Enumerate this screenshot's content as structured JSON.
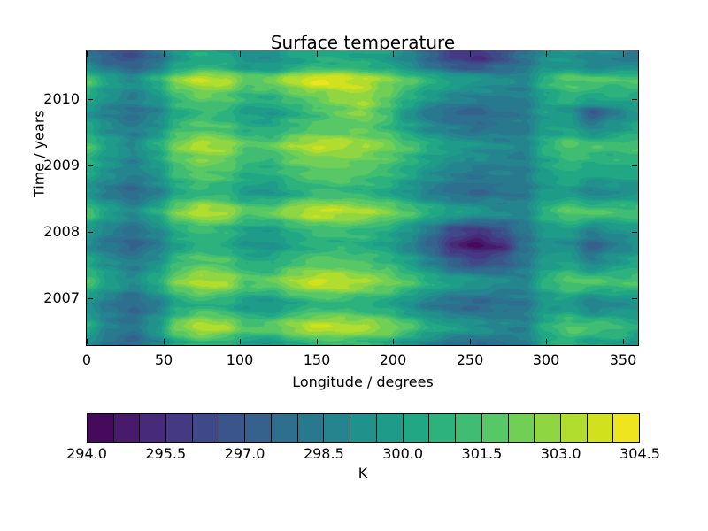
{
  "title": "Surface temperature",
  "x_axis": {
    "label": "Longitude / degrees",
    "range": [
      0,
      360
    ],
    "ticks": [
      {
        "value": 0,
        "label": "0"
      },
      {
        "value": 50,
        "label": "50"
      },
      {
        "value": 100,
        "label": "100"
      },
      {
        "value": 150,
        "label": "150"
      },
      {
        "value": 200,
        "label": "200"
      },
      {
        "value": 250,
        "label": "250"
      },
      {
        "value": 300,
        "label": "300"
      },
      {
        "value": 350,
        "label": "350"
      }
    ]
  },
  "y_axis": {
    "label": "Time / years",
    "range": [
      2006.29,
      2010.735
    ],
    "ticks": [
      {
        "value": 2007,
        "label": "2007"
      },
      {
        "value": 2008,
        "label": "2008"
      },
      {
        "value": 2009,
        "label": "2009"
      },
      {
        "value": 2010,
        "label": "2010"
      }
    ]
  },
  "colorbar": {
    "unit": "K",
    "level_min": 294.0,
    "level_step": 0.5,
    "n_cells": 21,
    "cell_colors": [
      "#450a5c",
      "#471a6c",
      "#472a79",
      "#443982",
      "#3f4888",
      "#3a558b",
      "#34628d",
      "#2e6e8e",
      "#29798e",
      "#25858e",
      "#21918c",
      "#1e9b89",
      "#22a785",
      "#2db27d",
      "#40bd72",
      "#58c765",
      "#72cf56",
      "#90d643",
      "#b0dd2e",
      "#d1e11e",
      "#efe51f"
    ],
    "ticks": [
      {
        "value": 294.0,
        "label": "294.0"
      },
      {
        "value": 295.5,
        "label": "295.5"
      },
      {
        "value": 297.0,
        "label": "297.0"
      },
      {
        "value": 298.5,
        "label": "298.5"
      },
      {
        "value": 300.0,
        "label": "300.0"
      },
      {
        "value": 301.5,
        "label": "301.5"
      },
      {
        "value": 303.0,
        "label": "303.0"
      },
      {
        "value": 304.5,
        "label": "304.5"
      }
    ]
  },
  "chart_data": {
    "type": "heatmap",
    "title": "Surface temperature",
    "xlabel": "Longitude / degrees",
    "ylabel": "Time / years",
    "units": "K",
    "contour_levels": {
      "min": 294.0,
      "max": 304.5,
      "step": 0.5
    },
    "longitude": [
      0,
      15,
      30,
      45,
      60,
      75,
      90,
      105,
      120,
      135,
      150,
      165,
      180,
      195,
      210,
      225,
      240,
      255,
      270,
      285,
      300,
      315,
      330,
      345,
      360
    ],
    "time": [
      2006.3,
      2006.55,
      2006.9,
      2007.25,
      2007.55,
      2007.8,
      2008.0,
      2008.3,
      2008.6,
      2008.9,
      2009.1,
      2009.3,
      2009.55,
      2009.8,
      2010.0,
      2010.3,
      2010.5,
      2010.62,
      2010.74
    ],
    "values": [
      [
        299.0,
        297.8,
        297.3,
        298.4,
        300.3,
        300.9,
        300.6,
        299.7,
        299.5,
        300.3,
        300.9,
        301.0,
        300.8,
        300.4,
        299.5,
        298.5,
        297.8,
        297.5,
        298.0,
        298.2,
        300.2,
        300.6,
        299.8,
        300.0,
        299.4
      ],
      [
        300.4,
        298.6,
        298.0,
        299.6,
        302.3,
        303.4,
        303.0,
        301.6,
        301.8,
        302.8,
        303.5,
        303.4,
        303.2,
        302.6,
        301.6,
        300.4,
        299.8,
        299.4,
        298.8,
        298.6,
        300.6,
        301.6,
        301.4,
        301.2,
        300.4
      ],
      [
        299.2,
        298.2,
        297.4,
        298.3,
        300.2,
        300.8,
        300.5,
        299.6,
        299.4,
        300.2,
        300.8,
        300.9,
        300.6,
        300.2,
        299.3,
        298.3,
        297.7,
        297.4,
        297.9,
        298.1,
        299.5,
        299.6,
        298.5,
        299.0,
        299.2
      ],
      [
        301.4,
        299.9,
        299.0,
        300.4,
        302.4,
        303.3,
        303.1,
        301.7,
        301.9,
        303.0,
        303.6,
        303.4,
        303.0,
        302.4,
        301.5,
        300.5,
        299.9,
        299.5,
        298.9,
        298.7,
        300.7,
        301.7,
        301.5,
        301.3,
        301.4
      ],
      [
        300.2,
        299.1,
        298.4,
        299.2,
        301.1,
        301.7,
        301.4,
        300.5,
        300.4,
        301.2,
        301.7,
        301.7,
        301.4,
        301.0,
        300.0,
        298.6,
        297.0,
        296.3,
        296.9,
        298.1,
        299.7,
        300.0,
        298.6,
        299.6,
        300.2
      ],
      [
        299.0,
        298.0,
        297.3,
        298.2,
        300.0,
        300.7,
        300.4,
        299.5,
        299.3,
        300.1,
        300.6,
        300.7,
        300.5,
        300.0,
        298.8,
        297.2,
        295.3,
        294.4,
        295.2,
        297.7,
        299.3,
        299.0,
        297.2,
        298.4,
        299.0
      ],
      [
        299.6,
        298.5,
        297.8,
        298.7,
        300.5,
        301.1,
        300.8,
        299.9,
        299.7,
        300.5,
        301.1,
        301.2,
        300.9,
        300.4,
        299.4,
        298.0,
        296.2,
        295.6,
        296.6,
        298.0,
        299.6,
        299.8,
        298.6,
        299.2,
        299.6
      ],
      [
        301.4,
        299.9,
        299.0,
        300.4,
        302.4,
        303.4,
        303.1,
        301.7,
        301.9,
        303.0,
        303.6,
        303.4,
        303.1,
        302.5,
        301.6,
        300.6,
        300.0,
        299.6,
        299.0,
        298.8,
        300.8,
        301.8,
        301.6,
        301.4,
        301.4
      ],
      [
        299.3,
        298.2,
        297.5,
        298.4,
        300.3,
        300.9,
        300.6,
        299.7,
        299.5,
        300.3,
        300.9,
        301.0,
        300.7,
        300.3,
        299.4,
        298.4,
        297.8,
        297.5,
        298.0,
        298.2,
        299.6,
        299.7,
        298.6,
        299.1,
        299.3
      ],
      [
        300.3,
        299.2,
        298.5,
        299.3,
        301.2,
        301.8,
        301.5,
        300.6,
        300.5,
        301.3,
        301.8,
        301.8,
        301.5,
        301.1,
        300.3,
        299.3,
        298.6,
        298.2,
        298.4,
        298.4,
        299.9,
        300.6,
        300.2,
        300.2,
        300.3
      ],
      [
        300.8,
        299.5,
        298.7,
        299.8,
        301.8,
        302.4,
        302.2,
        301.1,
        301.0,
        301.9,
        302.4,
        302.4,
        302.2,
        301.7,
        300.9,
        299.9,
        299.3,
        298.9,
        298.7,
        298.5,
        300.3,
        301.1,
        300.8,
        300.7,
        300.8
      ],
      [
        301.4,
        299.9,
        299.0,
        300.4,
        302.4,
        303.3,
        303.0,
        301.7,
        301.8,
        302.9,
        303.5,
        303.3,
        303.0,
        302.4,
        301.5,
        300.5,
        299.8,
        299.4,
        298.9,
        298.7,
        300.7,
        301.7,
        301.4,
        301.2,
        301.4
      ],
      [
        300.2,
        299.1,
        298.4,
        299.2,
        301.1,
        301.7,
        301.4,
        300.5,
        300.4,
        301.2,
        301.7,
        301.8,
        301.8,
        301.2,
        300.0,
        299.0,
        298.3,
        297.9,
        298.2,
        298.3,
        299.8,
        300.0,
        298.8,
        299.6,
        300.2
      ],
      [
        299.5,
        298.4,
        297.8,
        298.6,
        300.4,
        301.0,
        300.8,
        299.8,
        299.6,
        300.4,
        301.2,
        302.0,
        302.6,
        301.4,
        299.4,
        298.1,
        297.5,
        297.3,
        298.0,
        298.2,
        299.8,
        299.3,
        297.0,
        298.3,
        299.5
      ],
      [
        300.3,
        299.2,
        298.5,
        299.3,
        301.2,
        301.8,
        301.6,
        300.7,
        300.6,
        301.4,
        302.0,
        302.6,
        303.0,
        301.9,
        300.6,
        299.5,
        298.8,
        298.4,
        298.5,
        298.4,
        300.0,
        300.7,
        300.2,
        300.3,
        300.3
      ],
      [
        301.5,
        300.0,
        299.1,
        300.5,
        302.6,
        303.6,
        303.3,
        301.9,
        302.2,
        303.4,
        304.1,
        304.0,
        303.4,
        302.6,
        301.7,
        300.7,
        300.0,
        299.6,
        299.0,
        298.8,
        300.8,
        301.8,
        301.6,
        301.4,
        301.5
      ],
      [
        299.0,
        297.9,
        297.2,
        298.2,
        300.1,
        300.7,
        300.5,
        299.6,
        299.4,
        300.2,
        300.8,
        300.9,
        300.6,
        300.2,
        299.2,
        298.0,
        297.0,
        296.6,
        297.4,
        298.0,
        299.4,
        299.5,
        298.6,
        299.0,
        299.0
      ],
      [
        297.9,
        296.9,
        296.5,
        297.6,
        299.6,
        300.3,
        300.1,
        299.3,
        299.1,
        299.9,
        300.3,
        300.3,
        300.1,
        299.7,
        298.7,
        297.2,
        295.9,
        295.4,
        296.4,
        297.8,
        299.2,
        299.4,
        298.8,
        298.6,
        297.9
      ],
      [
        298.2,
        297.1,
        296.8,
        297.8,
        299.7,
        300.4,
        300.2,
        299.4,
        299.2,
        300.0,
        300.4,
        300.4,
        300.2,
        299.8,
        298.8,
        297.4,
        296.2,
        295.7,
        296.6,
        297.9,
        299.3,
        299.5,
        298.9,
        298.7,
        298.2
      ]
    ]
  }
}
